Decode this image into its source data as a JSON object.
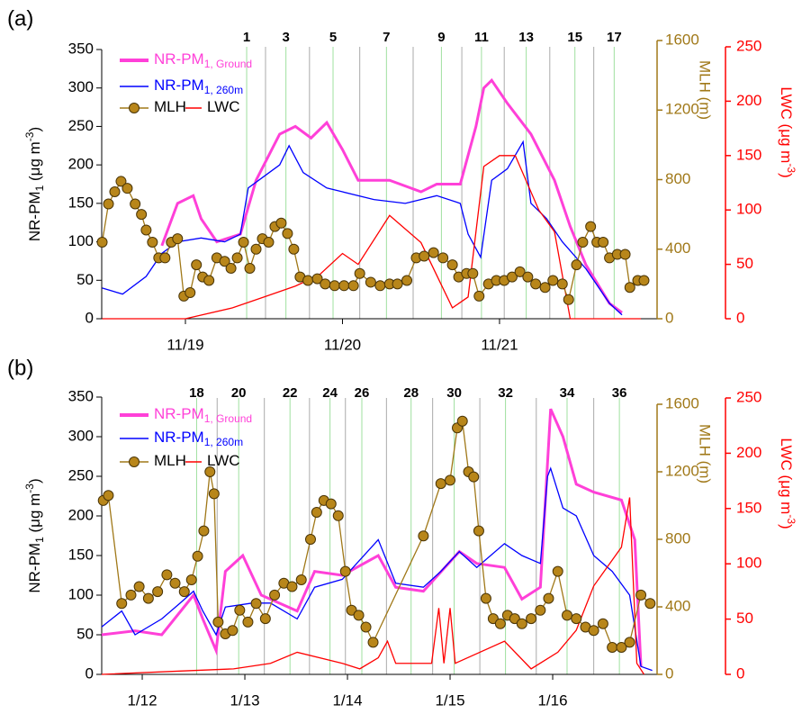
{
  "chart_data": [
    {
      "type": "line",
      "panel_label": "(a)",
      "ylabel": [
        "NR-PM",
        "1",
        " (μg m",
        "-3",
        ")"
      ],
      "y2label": "MLH (m)",
      "y3label": [
        "LWC (μg m",
        "-3",
        ")"
      ],
      "y2color": "#a07818",
      "y3color": "#ff0000",
      "xlim": [
        18.467,
        21.986
      ],
      "xticks": [
        {
          "value": 19,
          "label": "11/19"
        },
        {
          "value": 20,
          "label": "11/20"
        },
        {
          "value": 21,
          "label": "11/21"
        }
      ],
      "ylim": [
        0,
        350
      ],
      "yticks": [
        0,
        50,
        100,
        150,
        200,
        250,
        300,
        350
      ],
      "y2lim": [
        0,
        1600
      ],
      "y2ticks": [
        0,
        400,
        800,
        1200,
        1600
      ],
      "y3lim": [
        0,
        250
      ],
      "y3ticks": [
        0,
        50,
        100,
        150,
        200,
        250
      ],
      "events": {
        "x": [
          19.39,
          19.51,
          19.64,
          19.79,
          19.94,
          20.11,
          20.28,
          20.45,
          20.63,
          20.76,
          20.885,
          21.03,
          21.17,
          21.32,
          21.48,
          21.6,
          21.73
        ],
        "labels": [
          "1",
          null,
          "3",
          null,
          "5",
          null,
          "7",
          null,
          "9",
          null,
          "11",
          null,
          "13",
          null,
          "15",
          null,
          "17"
        ]
      },
      "series": [
        {
          "name": "NR-PM",
          "name_subscript": "1, Ground",
          "color": "#ff40d8",
          "axis": "y",
          "x": [
            18.85,
            18.95,
            19.05,
            19.1,
            19.2,
            19.35,
            19.45,
            19.6,
            19.7,
            19.8,
            19.9,
            20.0,
            20.1,
            20.3,
            20.5,
            20.6,
            20.75,
            20.85,
            20.9,
            20.95,
            21.05,
            21.2,
            21.35,
            21.45,
            21.55,
            21.7,
            21.78
          ],
          "values": [
            95,
            150,
            160,
            130,
            100,
            110,
            180,
            240,
            250,
            235,
            255,
            220,
            180,
            180,
            165,
            175,
            175,
            250,
            300,
            310,
            280,
            240,
            180,
            120,
            70,
            20,
            8
          ]
        },
        {
          "name": "NR-PM",
          "name_subscript": "1, 260m",
          "color": "#0000ff",
          "axis": "y",
          "x": [
            18.47,
            18.6,
            18.75,
            18.85,
            18.95,
            19.1,
            19.25,
            19.35,
            19.4,
            19.5,
            19.6,
            19.66,
            19.75,
            19.9,
            20.0,
            20.2,
            20.4,
            20.6,
            20.75,
            20.8,
            20.88,
            20.95,
            21.05,
            21.15,
            21.2,
            21.3,
            21.4,
            21.55,
            21.7,
            21.78
          ],
          "values": [
            40,
            32,
            55,
            85,
            100,
            105,
            100,
            110,
            170,
            185,
            200,
            225,
            190,
            170,
            165,
            155,
            150,
            160,
            150,
            110,
            80,
            180,
            195,
            230,
            150,
            130,
            100,
            65,
            20,
            5
          ]
        },
        {
          "name": "MLH",
          "color": "#a07818",
          "marker": "#b8861a",
          "axis": "y2",
          "x": [
            18.47,
            18.51,
            18.55,
            18.59,
            18.63,
            18.68,
            18.72,
            18.75,
            18.79,
            18.83,
            18.87,
            18.91,
            18.95,
            18.99,
            19.03,
            19.07,
            19.11,
            19.15,
            19.2,
            19.25,
            19.29,
            19.33,
            19.37,
            19.41,
            19.45,
            19.49,
            19.53,
            19.57,
            19.61,
            19.65,
            19.69,
            19.73,
            19.78,
            19.84,
            19.89,
            19.95,
            20.01,
            20.07,
            20.11,
            20.18,
            20.24,
            20.3,
            20.35,
            20.41,
            20.47,
            20.52,
            20.58,
            20.64,
            20.7,
            20.74,
            20.79,
            20.83,
            20.87,
            20.93,
            20.98,
            21.03,
            21.08,
            21.13,
            21.18,
            21.23,
            21.29,
            21.34,
            21.4,
            21.44,
            21.49,
            21.53,
            21.58,
            21.62,
            21.66,
            21.7,
            21.75,
            21.8,
            21.83,
            21.88,
            21.92
          ],
          "values": [
            440,
            660,
            730,
            790,
            750,
            660,
            600,
            510,
            440,
            350,
            350,
            440,
            460,
            130,
            150,
            310,
            240,
            220,
            350,
            330,
            290,
            350,
            440,
            290,
            400,
            460,
            440,
            530,
            550,
            490,
            400,
            240,
            220,
            230,
            200,
            190,
            190,
            190,
            260,
            210,
            190,
            200,
            200,
            220,
            350,
            360,
            380,
            350,
            310,
            240,
            260,
            260,
            130,
            200,
            220,
            220,
            240,
            270,
            240,
            200,
            180,
            220,
            200,
            110,
            310,
            440,
            530,
            440,
            440,
            350,
            370,
            370,
            180,
            220,
            220
          ]
        },
        {
          "name": "LWC",
          "color": "#ff0000",
          "axis": "y3",
          "x": [
            18.47,
            19.0,
            19.3,
            19.5,
            19.7,
            19.85,
            20.0,
            20.1,
            20.3,
            20.5,
            20.6,
            20.7,
            20.8,
            20.9,
            21.0,
            21.1,
            21.25,
            21.35,
            21.45,
            21.9
          ],
          "values": [
            0,
            0,
            10,
            20,
            30,
            40,
            60,
            50,
            95,
            70,
            40,
            10,
            20,
            140,
            150,
            150,
            100,
            80,
            0,
            0
          ]
        }
      ]
    },
    {
      "type": "line",
      "panel_label": "(b)",
      "ylabel": [
        "NR-PM",
        "1",
        " (μg m",
        "-3",
        ")"
      ],
      "y2label": "MLH (m)",
      "y3label": [
        "LWC (μg m",
        "-3",
        ")"
      ],
      "y2color": "#a07818",
      "y3color": "#ff0000",
      "xlim": [
        11.605,
        16.991
      ],
      "xticks": [
        {
          "value": 12,
          "label": "1/12"
        },
        {
          "value": 13,
          "label": "1/13"
        },
        {
          "value": 14,
          "label": "1/14"
        },
        {
          "value": 15,
          "label": "1/15"
        },
        {
          "value": 16,
          "label": "1/16"
        }
      ],
      "ylim": [
        0,
        350
      ],
      "yticks": [
        0,
        50,
        100,
        150,
        200,
        250,
        300,
        350
      ],
      "y2lim": [
        0,
        1600
      ],
      "y2ticks": [
        0,
        400,
        800,
        1200,
        1600
      ],
      "y3lim": [
        0,
        250
      ],
      "y3ticks": [
        0,
        50,
        100,
        150,
        200,
        250
      ],
      "events": {
        "x": [
          12.53,
          12.73,
          12.94,
          13.19,
          13.44,
          13.63,
          13.83,
          13.98,
          14.14,
          14.38,
          14.62,
          14.83,
          15.04,
          15.29,
          15.54,
          15.84,
          16.14,
          16.4,
          16.65
        ],
        "labels": [
          "18",
          null,
          "20",
          null,
          "22",
          null,
          "24",
          null,
          "26",
          null,
          "28",
          null,
          "30",
          null,
          "32",
          null,
          "34",
          null,
          "36"
        ]
      },
      "series": [
        {
          "name": "NR-PM",
          "name_subscript": "1, Ground",
          "color": "#ff40d8",
          "axis": "y",
          "x": [
            11.605,
            11.93,
            12.19,
            12.5,
            12.59,
            12.72,
            12.81,
            12.98,
            13.16,
            13.51,
            13.68,
            13.95,
            14.3,
            14.47,
            14.74,
            15.09,
            15.26,
            15.53,
            15.7,
            15.88,
            15.98,
            16.1,
            16.23,
            16.4,
            16.67,
            16.8,
            16.86
          ],
          "values": [
            50,
            55,
            50,
            100,
            70,
            30,
            130,
            150,
            100,
            80,
            130,
            125,
            150,
            110,
            105,
            155,
            140,
            135,
            95,
            110,
            335,
            300,
            240,
            230,
            220,
            170,
            10
          ]
        },
        {
          "name": "NR-PM",
          "name_subscript": "1, 260m",
          "color": "#0000ff",
          "axis": "y",
          "x": [
            11.605,
            11.8,
            11.93,
            12.19,
            12.37,
            12.5,
            12.59,
            12.72,
            12.81,
            13.07,
            13.25,
            13.51,
            13.68,
            13.95,
            14.3,
            14.47,
            14.74,
            14.91,
            15.09,
            15.26,
            15.53,
            15.7,
            15.88,
            15.95,
            15.98,
            16.1,
            16.23,
            16.4,
            16.58,
            16.75,
            16.86,
            16.97
          ],
          "values": [
            60,
            80,
            50,
            70,
            90,
            105,
            80,
            50,
            85,
            90,
            90,
            70,
            110,
            120,
            170,
            115,
            110,
            130,
            155,
            135,
            165,
            150,
            140,
            250,
            260,
            210,
            200,
            150,
            130,
            100,
            10,
            5
          ]
        },
        {
          "name": "MLH",
          "color": "#a07818",
          "marker": "#b8861a",
          "axis": "y2",
          "x": [
            11.62,
            11.67,
            11.8,
            11.89,
            11.97,
            12.06,
            12.15,
            12.24,
            12.32,
            12.41,
            12.48,
            12.54,
            12.6,
            12.66,
            12.7,
            12.74,
            12.81,
            12.88,
            12.95,
            13.03,
            13.11,
            13.2,
            13.29,
            13.38,
            13.46,
            13.55,
            13.64,
            13.7,
            13.77,
            13.84,
            13.91,
            13.98,
            14.04,
            14.11,
            14.18,
            14.25,
            14.74,
            14.91,
            15.0,
            15.07,
            15.12,
            15.18,
            15.23,
            15.28,
            15.35,
            15.42,
            15.49,
            15.56,
            15.63,
            15.7,
            15.79,
            15.88,
            15.96,
            16.05,
            16.14,
            16.23,
            16.32,
            16.4,
            16.49,
            16.58,
            16.67,
            16.75,
            16.86,
            16.95
          ],
          "values": [
            1030,
            1060,
            420,
            470,
            520,
            450,
            490,
            590,
            540,
            490,
            560,
            700,
            850,
            1200,
            1070,
            310,
            240,
            260,
            380,
            310,
            420,
            330,
            470,
            540,
            520,
            560,
            800,
            960,
            1030,
            1010,
            940,
            610,
            380,
            350,
            280,
            190,
            820,
            1130,
            1150,
            1460,
            1500,
            1200,
            1170,
            850,
            450,
            330,
            300,
            350,
            330,
            300,
            330,
            380,
            450,
            610,
            350,
            330,
            280,
            260,
            300,
            160,
            160,
            190,
            470,
            420
          ]
        },
        {
          "name": "LWC",
          "color": "#ff0000",
          "axis": "y3",
          "x": [
            11.605,
            12.37,
            12.89,
            13.25,
            13.51,
            13.95,
            14.12,
            14.3,
            14.39,
            14.47,
            14.82,
            14.89,
            14.94,
            15.0,
            15.05,
            15.53,
            15.79,
            16.05,
            16.23,
            16.4,
            16.67,
            16.75,
            16.82,
            16.89
          ],
          "values": [
            0,
            3,
            5,
            10,
            20,
            10,
            5,
            15,
            30,
            10,
            10,
            60,
            10,
            60,
            10,
            30,
            5,
            20,
            40,
            80,
            115,
            160,
            10,
            0
          ]
        }
      ]
    }
  ]
}
